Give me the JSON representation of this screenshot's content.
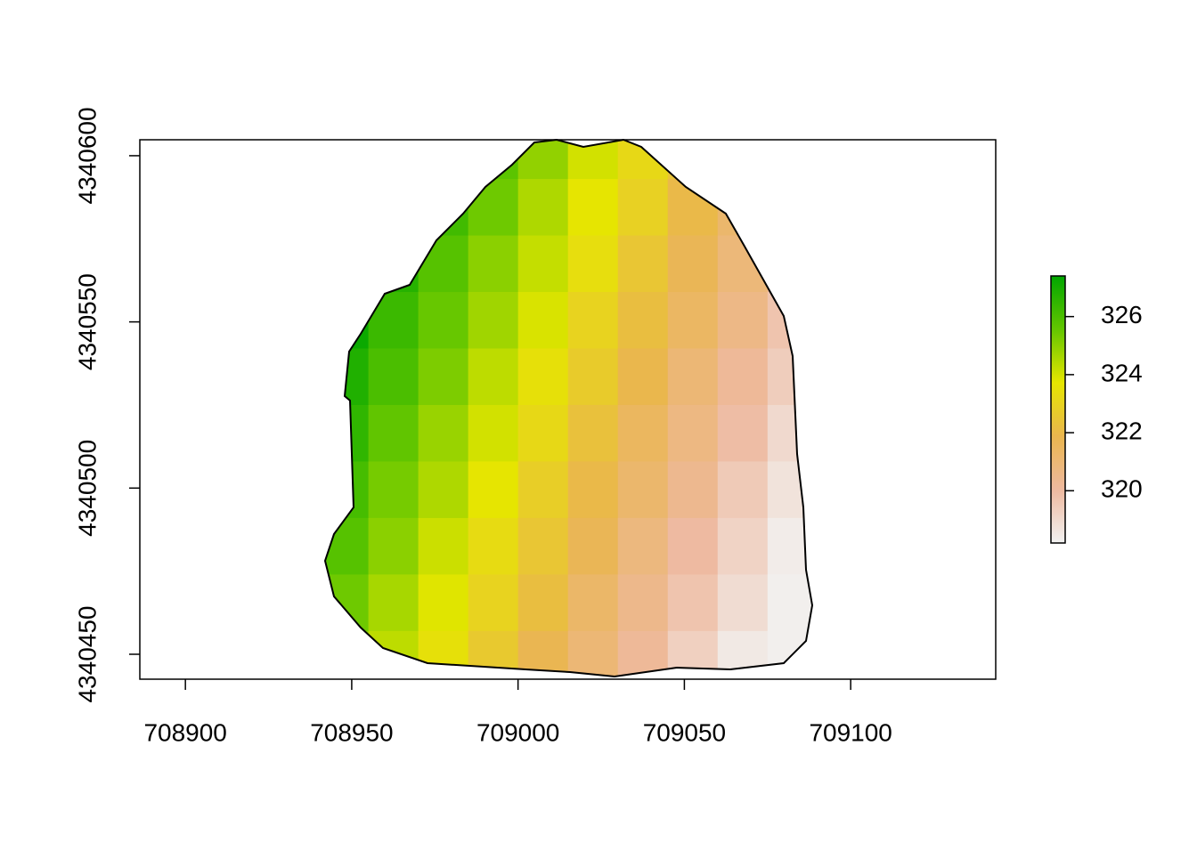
{
  "chart_data": {
    "type": "raster",
    "xlim": [
      708886.3,
      709143.6
    ],
    "ylim": [
      4340442.5,
      4340604.8
    ],
    "xticks": [
      708900,
      708950,
      709000,
      709050,
      709100
    ],
    "yticks": [
      4340450,
      4340500,
      4340550,
      4340600
    ],
    "x_edges": [
      708940,
      708955,
      708970,
      708985,
      709000,
      709015,
      709030,
      709045,
      709060,
      709075,
      709090
    ],
    "y_edges": [
      4340610,
      4340593,
      4340576,
      4340559,
      4340542,
      4340525,
      4340508,
      4340491,
      4340474,
      4340457,
      4340440
    ],
    "values": [
      [
        327.3,
        327.3,
        326.5,
        325.7,
        324.9,
        324.0,
        323.2,
        322.4,
        321.6,
        320.7
      ],
      [
        327.2,
        327.0,
        326.2,
        325.4,
        324.5,
        323.7,
        322.9,
        322.0,
        321.2,
        320.4
      ],
      [
        327.1,
        326.7,
        325.8,
        325.0,
        324.2,
        323.4,
        322.5,
        321.7,
        320.9,
        320.1
      ],
      [
        327.2,
        326.3,
        325.5,
        324.7,
        323.9,
        323.0,
        322.2,
        321.4,
        320.6,
        319.7
      ],
      [
        326.8,
        326.0,
        325.2,
        324.3,
        323.5,
        322.7,
        321.9,
        321.0,
        320.2,
        319.4
      ],
      [
        326.5,
        325.6,
        324.8,
        324.0,
        323.2,
        322.3,
        321.5,
        320.7,
        319.9,
        319.0
      ],
      [
        326.1,
        325.3,
        324.5,
        323.7,
        322.8,
        322.0,
        321.2,
        320.4,
        319.5,
        318.7
      ],
      [
        325.8,
        325.0,
        324.1,
        323.3,
        322.5,
        321.7,
        320.8,
        320.0,
        319.2,
        318.4
      ],
      [
        325.4,
        324.6,
        323.8,
        323.0,
        322.2,
        321.3,
        320.5,
        319.7,
        318.9,
        318.3
      ],
      [
        325.1,
        324.3,
        323.5,
        322.6,
        321.8,
        321.0,
        320.2,
        319.3,
        318.5,
        318.3
      ]
    ],
    "zlim": [
      318.2,
      327.4
    ],
    "zticks": [
      320,
      322,
      324,
      326
    ],
    "colors": [
      "#f2f2f2",
      "#eeb99f",
      "#eab64e",
      "#e6e600",
      "#63c600",
      "#00a600"
    ]
  }
}
